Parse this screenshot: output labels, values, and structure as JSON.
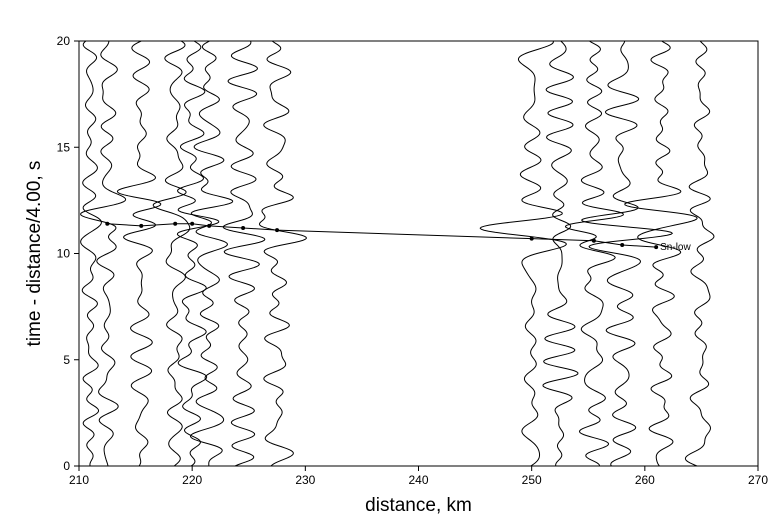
{
  "chart_data": {
    "type": "line",
    "title": "",
    "xlabel": "distance, km",
    "ylabel": "time - distance/4.00, s",
    "xlim": [
      210,
      270
    ],
    "ylim": [
      0,
      20
    ],
    "xticks": [
      "210",
      "220",
      "230",
      "240",
      "250",
      "260",
      "270"
    ],
    "yticks": [
      "0",
      "5",
      "10",
      "15",
      "20"
    ],
    "grid": false,
    "legend": "none",
    "line_color": "#000000",
    "traces": [
      {
        "distance": 211.0,
        "amp": 1.1,
        "seed": 3
      },
      {
        "distance": 212.5,
        "amp": 1.6,
        "seed": 7
      },
      {
        "distance": 215.5,
        "amp": 1.7,
        "seed": 11
      },
      {
        "distance": 218.5,
        "amp": 1.8,
        "seed": 13
      },
      {
        "distance": 220.0,
        "amp": 1.9,
        "seed": 17
      },
      {
        "distance": 221.5,
        "amp": 2.0,
        "seed": 19
      },
      {
        "distance": 224.5,
        "amp": 1.9,
        "seed": 23
      },
      {
        "distance": 227.5,
        "amp": 1.8,
        "seed": 29
      },
      {
        "distance": 250.0,
        "amp": 2.0,
        "seed": 31
      },
      {
        "distance": 252.5,
        "amp": 1.9,
        "seed": 37
      },
      {
        "distance": 255.5,
        "amp": 2.0,
        "seed": 41
      },
      {
        "distance": 258.0,
        "amp": 2.0,
        "seed": 43
      },
      {
        "distance": 261.5,
        "amp": 1.8,
        "seed": 47
      },
      {
        "distance": 265.0,
        "amp": 1.7,
        "seed": 53
      }
    ],
    "picks": {
      "label": "Sn-low",
      "points": [
        {
          "x": 212.5,
          "y": 11.4
        },
        {
          "x": 215.5,
          "y": 11.3
        },
        {
          "x": 218.5,
          "y": 11.4
        },
        {
          "x": 220.0,
          "y": 11.4
        },
        {
          "x": 221.5,
          "y": 11.3
        },
        {
          "x": 224.5,
          "y": 11.2
        },
        {
          "x": 227.5,
          "y": 11.1
        },
        {
          "x": 250.0,
          "y": 10.7
        },
        {
          "x": 255.5,
          "y": 10.6
        },
        {
          "x": 258.0,
          "y": 10.4
        },
        {
          "x": 261.0,
          "y": 10.3
        }
      ]
    }
  }
}
